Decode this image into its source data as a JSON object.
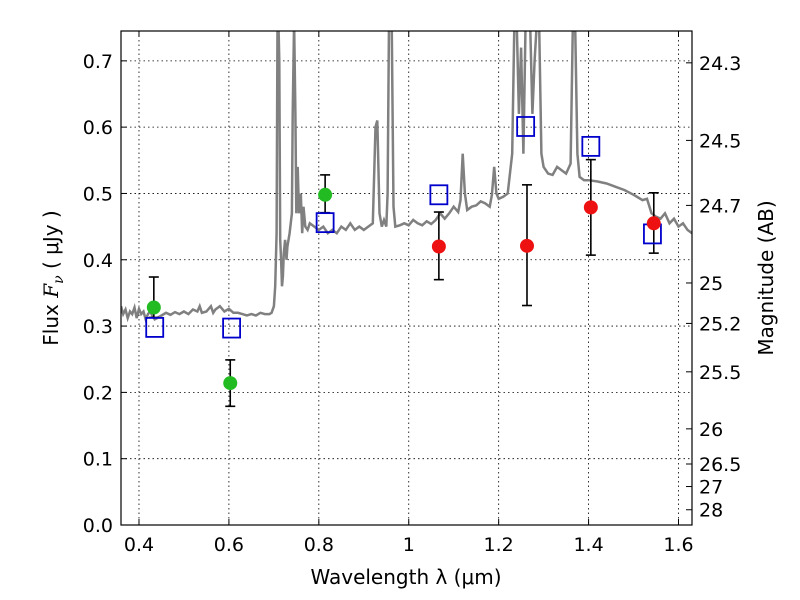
{
  "chart_data": {
    "type": "scatter",
    "xlabel": "Wavelength  λ (μm)",
    "ylabel_prefix": "Flux  ",
    "ylabel_symbol": "F",
    "ylabel_sub": "ν",
    "ylabel_suffix": "  ( μJy )",
    "ylabel_right": "Magnitude (AB)",
    "xlim": [
      0.36,
      1.63
    ],
    "ylim": [
      0.0,
      0.745
    ],
    "x_ticks": [
      0.4,
      0.6,
      0.8,
      1.0,
      1.2,
      1.4,
      1.6
    ],
    "x_tick_labels": [
      "0.4",
      "0.6",
      "0.8",
      "1",
      "1.2",
      "1.4",
      "1.6"
    ],
    "y_ticks": [
      0.0,
      0.1,
      0.2,
      0.3,
      0.4,
      0.5,
      0.6,
      0.7
    ],
    "y_tick_labels": [
      "0.0",
      "0.1",
      "0.2",
      "0.3",
      "0.4",
      "0.5",
      "0.6",
      "0.7"
    ],
    "right_ticks": [
      {
        "label": "24.3",
        "flux": 0.697
      },
      {
        "label": "24.5",
        "flux": 0.58
      },
      {
        "label": "24.7",
        "flux": 0.482
      },
      {
        "label": "25",
        "flux": 0.365
      },
      {
        "label": "25.2",
        "flux": 0.304
      },
      {
        "label": "25.5",
        "flux": 0.231
      },
      {
        "label": "26",
        "flux": 0.145
      },
      {
        "label": "26.5",
        "flux": 0.092
      },
      {
        "label": "27",
        "flux": 0.058
      },
      {
        "label": "28",
        "flux": 0.023
      }
    ],
    "grid": true,
    "colors": {
      "spectrum": "#808080",
      "green": "#22bb22",
      "red": "#ee1111",
      "model_box": "#0000cc",
      "errorbar": "#000000"
    },
    "spectrum": [
      [
        0.36,
        0.33
      ],
      [
        0.365,
        0.318
      ],
      [
        0.37,
        0.325
      ],
      [
        0.375,
        0.312
      ],
      [
        0.38,
        0.322
      ],
      [
        0.385,
        0.318
      ],
      [
        0.39,
        0.328
      ],
      [
        0.395,
        0.312
      ],
      [
        0.4,
        0.326
      ],
      [
        0.405,
        0.318
      ],
      [
        0.41,
        0.322
      ],
      [
        0.415,
        0.31
      ],
      [
        0.42,
        0.318
      ],
      [
        0.425,
        0.322
      ],
      [
        0.43,
        0.315
      ],
      [
        0.435,
        0.31
      ],
      [
        0.44,
        0.312
      ],
      [
        0.45,
        0.316
      ],
      [
        0.46,
        0.32
      ],
      [
        0.47,
        0.317
      ],
      [
        0.48,
        0.321
      ],
      [
        0.49,
        0.318
      ],
      [
        0.5,
        0.322
      ],
      [
        0.51,
        0.318
      ],
      [
        0.52,
        0.325
      ],
      [
        0.53,
        0.322
      ],
      [
        0.535,
        0.33
      ],
      [
        0.54,
        0.32
      ],
      [
        0.55,
        0.322
      ],
      [
        0.56,
        0.33
      ],
      [
        0.565,
        0.32
      ],
      [
        0.57,
        0.325
      ],
      [
        0.58,
        0.33
      ],
      [
        0.59,
        0.322
      ],
      [
        0.6,
        0.326
      ],
      [
        0.61,
        0.32
      ],
      [
        0.62,
        0.32
      ],
      [
        0.63,
        0.318
      ],
      [
        0.64,
        0.316
      ],
      [
        0.65,
        0.318
      ],
      [
        0.66,
        0.316
      ],
      [
        0.67,
        0.32
      ],
      [
        0.68,
        0.318
      ],
      [
        0.69,
        0.318
      ],
      [
        0.695,
        0.32
      ],
      [
        0.7,
        0.33
      ],
      [
        0.703,
        0.36
      ],
      [
        0.706,
        0.44
      ],
      [
        0.708,
        0.76
      ],
      [
        0.71,
        0.76
      ],
      [
        0.712,
        0.7
      ],
      [
        0.714,
        0.43
      ],
      [
        0.716,
        0.4
      ],
      [
        0.718,
        0.36
      ],
      [
        0.72,
        0.375
      ],
      [
        0.722,
        0.41
      ],
      [
        0.725,
        0.43
      ],
      [
        0.728,
        0.4
      ],
      [
        0.73,
        0.42
      ],
      [
        0.735,
        0.44
      ],
      [
        0.74,
        0.47
      ],
      [
        0.742,
        0.62
      ],
      [
        0.745,
        0.76
      ],
      [
        0.748,
        0.62
      ],
      [
        0.75,
        0.47
      ],
      [
        0.753,
        0.54
      ],
      [
        0.756,
        0.47
      ],
      [
        0.76,
        0.5
      ],
      [
        0.763,
        0.44
      ],
      [
        0.766,
        0.48
      ],
      [
        0.77,
        0.45
      ],
      [
        0.775,
        0.445
      ],
      [
        0.78,
        0.455
      ],
      [
        0.79,
        0.45
      ],
      [
        0.8,
        0.445
      ],
      [
        0.81,
        0.45
      ],
      [
        0.82,
        0.44
      ],
      [
        0.83,
        0.445
      ],
      [
        0.84,
        0.44
      ],
      [
        0.85,
        0.45
      ],
      [
        0.86,
        0.445
      ],
      [
        0.87,
        0.455
      ],
      [
        0.88,
        0.445
      ],
      [
        0.89,
        0.45
      ],
      [
        0.9,
        0.445
      ],
      [
        0.91,
        0.45
      ],
      [
        0.92,
        0.455
      ],
      [
        0.926,
        0.6
      ],
      [
        0.93,
        0.61
      ],
      [
        0.935,
        0.47
      ],
      [
        0.94,
        0.45
      ],
      [
        0.945,
        0.46
      ],
      [
        0.95,
        0.45
      ],
      [
        0.953,
        0.5
      ],
      [
        0.956,
        0.76
      ],
      [
        0.962,
        0.76
      ],
      [
        0.966,
        0.48
      ],
      [
        0.97,
        0.45
      ],
      [
        0.98,
        0.452
      ],
      [
        0.99,
        0.455
      ],
      [
        1.0,
        0.452
      ],
      [
        1.01,
        0.46
      ],
      [
        1.02,
        0.455
      ],
      [
        1.03,
        0.452
      ],
      [
        1.04,
        0.458
      ],
      [
        1.05,
        0.454
      ],
      [
        1.06,
        0.46
      ],
      [
        1.07,
        0.47
      ],
      [
        1.08,
        0.462
      ],
      [
        1.09,
        0.47
      ],
      [
        1.1,
        0.48
      ],
      [
        1.11,
        0.472
      ],
      [
        1.115,
        0.49
      ],
      [
        1.12,
        0.56
      ],
      [
        1.125,
        0.5
      ],
      [
        1.13,
        0.475
      ],
      [
        1.14,
        0.48
      ],
      [
        1.15,
        0.482
      ],
      [
        1.16,
        0.488
      ],
      [
        1.17,
        0.485
      ],
      [
        1.18,
        0.48
      ],
      [
        1.185,
        0.498
      ],
      [
        1.19,
        0.54
      ],
      [
        1.195,
        0.5
      ],
      [
        1.2,
        0.492
      ],
      [
        1.21,
        0.495
      ],
      [
        1.22,
        0.5
      ],
      [
        1.23,
        0.56
      ],
      [
        1.235,
        0.76
      ],
      [
        1.24,
        0.76
      ],
      [
        1.245,
        0.62
      ],
      [
        1.25,
        0.72
      ],
      [
        1.255,
        0.56
      ],
      [
        1.26,
        0.76
      ],
      [
        1.27,
        0.76
      ],
      [
        1.275,
        0.62
      ],
      [
        1.28,
        0.7
      ],
      [
        1.285,
        0.76
      ],
      [
        1.29,
        0.76
      ],
      [
        1.295,
        0.56
      ],
      [
        1.3,
        0.54
      ],
      [
        1.31,
        0.53
      ],
      [
        1.32,
        0.528
      ],
      [
        1.33,
        0.54
      ],
      [
        1.34,
        0.535
      ],
      [
        1.35,
        0.53
      ],
      [
        1.36,
        0.545
      ],
      [
        1.365,
        0.76
      ],
      [
        1.37,
        0.76
      ],
      [
        1.375,
        0.56
      ],
      [
        1.38,
        0.525
      ],
      [
        1.39,
        0.52
      ],
      [
        1.4,
        0.52
      ],
      [
        1.42,
        0.518
      ],
      [
        1.44,
        0.515
      ],
      [
        1.46,
        0.51
      ],
      [
        1.48,
        0.505
      ],
      [
        1.5,
        0.498
      ],
      [
        1.52,
        0.49
      ],
      [
        1.53,
        0.492
      ],
      [
        1.54,
        0.47
      ],
      [
        1.55,
        0.465
      ],
      [
        1.56,
        0.462
      ],
      [
        1.57,
        0.47
      ],
      [
        1.58,
        0.455
      ],
      [
        1.59,
        0.462
      ],
      [
        1.6,
        0.45
      ],
      [
        1.61,
        0.455
      ],
      [
        1.62,
        0.445
      ],
      [
        1.63,
        0.44
      ]
    ],
    "observed_green": [
      {
        "x": 0.433,
        "y": 0.328,
        "err_lo": 0.313,
        "err_hi": 0.374
      },
      {
        "x": 0.603,
        "y": 0.214,
        "err_lo": 0.179,
        "err_hi": 0.249
      },
      {
        "x": 0.814,
        "y": 0.498,
        "err_lo": 0.471,
        "err_hi": 0.528
      }
    ],
    "observed_red": [
      {
        "x": 1.067,
        "y": 0.42,
        "err_lo": 0.37,
        "err_hi": 0.472
      },
      {
        "x": 1.263,
        "y": 0.421,
        "err_lo": 0.331,
        "err_hi": 0.513
      },
      {
        "x": 1.405,
        "y": 0.479,
        "err_lo": 0.407,
        "err_hi": 0.551
      },
      {
        "x": 1.545,
        "y": 0.455,
        "err_lo": 0.41,
        "err_hi": 0.501
      }
    ],
    "model_points": [
      {
        "x": 0.435,
        "y": 0.298
      },
      {
        "x": 0.606,
        "y": 0.297
      },
      {
        "x": 0.814,
        "y": 0.456
      },
      {
        "x": 1.067,
        "y": 0.498
      },
      {
        "x": 1.26,
        "y": 0.601
      },
      {
        "x": 1.405,
        "y": 0.571
      },
      {
        "x": 1.542,
        "y": 0.439
      }
    ]
  }
}
